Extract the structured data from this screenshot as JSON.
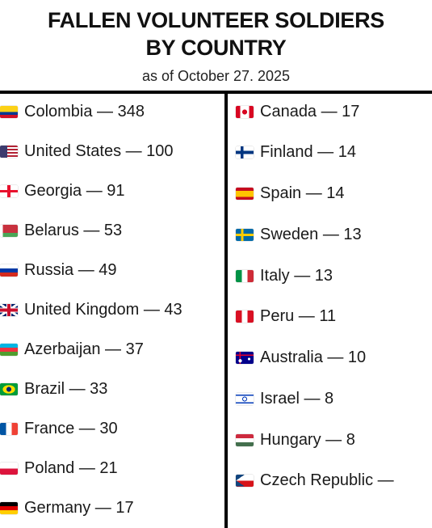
{
  "header": {
    "title_line1": "FALLEN VOLUNTEER SOLDIERS",
    "title_line2": "BY COUNTRY",
    "subtitle": "as of October 27. 2025"
  },
  "left_column": [
    {
      "label": "Colombia — 348",
      "flag": "colombia-flag"
    },
    {
      "label": "United States — 100",
      "flag": "united-states-flag"
    },
    {
      "label": "Georgia — 91",
      "flag": "georgia-flag"
    },
    {
      "label": "Belarus — 53",
      "flag": "belarus-flag"
    },
    {
      "label": "Russia — 49",
      "flag": "russia-flag"
    },
    {
      "label": "United Kingdom — 43",
      "flag": "united-kingdom-flag"
    },
    {
      "label": "Azerbaijan — 37",
      "flag": "azerbaijan-flag"
    },
    {
      "label": "Brazil — 33",
      "flag": "brazil-flag"
    },
    {
      "label": "France — 30",
      "flag": "france-flag"
    },
    {
      "label": "Poland — 21",
      "flag": "poland-flag"
    },
    {
      "label": "Germany — 17",
      "flag": "germany-flag"
    }
  ],
  "right_column": [
    {
      "label": "Canada — 17",
      "flag": "canada-flag"
    },
    {
      "label": "Finland — 14",
      "flag": "finland-flag"
    },
    {
      "label": "Spain — 14",
      "flag": "spain-flag"
    },
    {
      "label": "Sweden — 13",
      "flag": "sweden-flag"
    },
    {
      "label": "Italy — 13",
      "flag": "italy-flag"
    },
    {
      "label": "Peru — 11",
      "flag": "peru-flag"
    },
    {
      "label": "Australia — 10",
      "flag": "australia-flag"
    },
    {
      "label": "Israel — 8",
      "flag": "israel-flag"
    },
    {
      "label": "Hungary — 8",
      "flag": "hungary-flag"
    },
    {
      "label": "Czech Republic —",
      "flag": "czech-republic-flag"
    }
  ],
  "colors": {
    "text": "#1a1a1a",
    "rule": "#000000",
    "background": "#ffffff"
  }
}
